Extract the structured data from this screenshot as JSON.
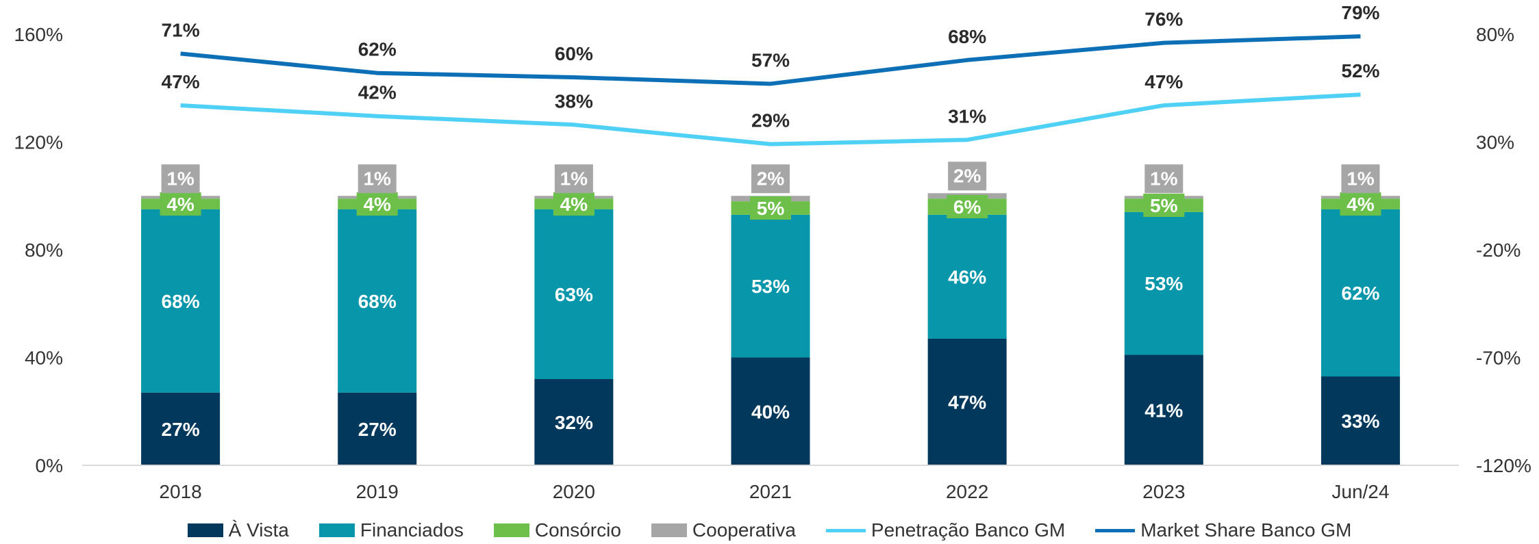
{
  "chart_data": {
    "type": "bar",
    "stacked": true,
    "categories": [
      "2018",
      "2019",
      "2020",
      "2021",
      "2022",
      "2023",
      "Jun/24"
    ],
    "y_left": {
      "ticks": [
        "0%",
        "40%",
        "80%",
        "120%",
        "160%"
      ],
      "range": [
        0,
        160
      ]
    },
    "y_right": {
      "ticks": [
        "-120%",
        "-70%",
        "-20%",
        "30%",
        "80%"
      ],
      "range": [
        -120,
        80
      ]
    },
    "bar_series": [
      {
        "name": "À Vista",
        "color": "#01385c",
        "values": [
          27,
          27,
          32,
          40,
          47,
          41,
          33
        ],
        "labels": [
          "27%",
          "27%",
          "32%",
          "40%",
          "47%",
          "41%",
          "33%"
        ]
      },
      {
        "name": "Financiados",
        "color": "#0796aa",
        "values": [
          68,
          68,
          63,
          53,
          46,
          53,
          62
        ],
        "labels": [
          "68%",
          "68%",
          "63%",
          "53%",
          "46%",
          "53%",
          "62%"
        ]
      },
      {
        "name": "Consórcio",
        "color": "#6cc04a",
        "values": [
          4,
          4,
          4,
          5,
          6,
          5,
          4
        ],
        "labels": [
          "4%",
          "4%",
          "4%",
          "5%",
          "6%",
          "5%",
          "4%"
        ]
      },
      {
        "name": "Cooperativa",
        "color": "#a6a6a6",
        "values": [
          1,
          1,
          1,
          2,
          2,
          1,
          1
        ],
        "labels": [
          "1%",
          "1%",
          "1%",
          "2%",
          "2%",
          "1%",
          "1%"
        ]
      }
    ],
    "line_series": [
      {
        "name": "Penetração Banco GM",
        "color": "#4fd0f5",
        "axis": "right",
        "values": [
          47,
          42,
          38,
          29,
          31,
          47,
          52
        ],
        "labels": [
          "47%",
          "42%",
          "38%",
          "29%",
          "31%",
          "47%",
          "52%"
        ]
      },
      {
        "name": "Market Share Banco GM",
        "color": "#0d6fb6",
        "axis": "right",
        "values": [
          71,
          62,
          60,
          57,
          68,
          76,
          79
        ],
        "labels": [
          "71%",
          "62%",
          "60%",
          "57%",
          "68%",
          "76%",
          "79%"
        ]
      }
    ],
    "legend_position": "bottom",
    "grid": false
  }
}
